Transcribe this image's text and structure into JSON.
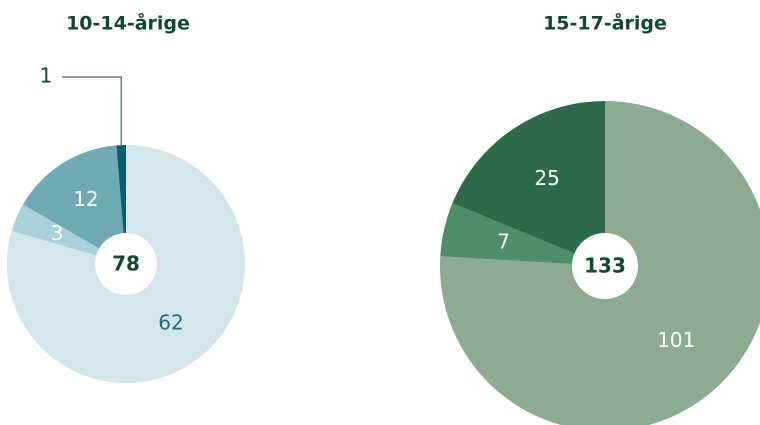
{
  "chart_data": [
    {
      "type": "pie",
      "title": "10-14-årige",
      "total": 78,
      "values": [
        62,
        3,
        12,
        1
      ],
      "colors": [
        "#d3e6ec",
        "#a9d1da",
        "#6fa9b4",
        "#0d5e6c"
      ],
      "label_colors": [
        "#1b6f80",
        "#ffffff",
        "#ffffff",
        "#0f4a2c"
      ]
    },
    {
      "type": "pie",
      "title": "15-17-årige",
      "total": 133,
      "values": [
        101,
        7,
        25
      ],
      "colors": [
        "#8cab91",
        "#4f8f68",
        "#2d6a4a"
      ],
      "label_colors": [
        "#ffffff",
        "#ffffff",
        "#ffffff"
      ]
    }
  ]
}
